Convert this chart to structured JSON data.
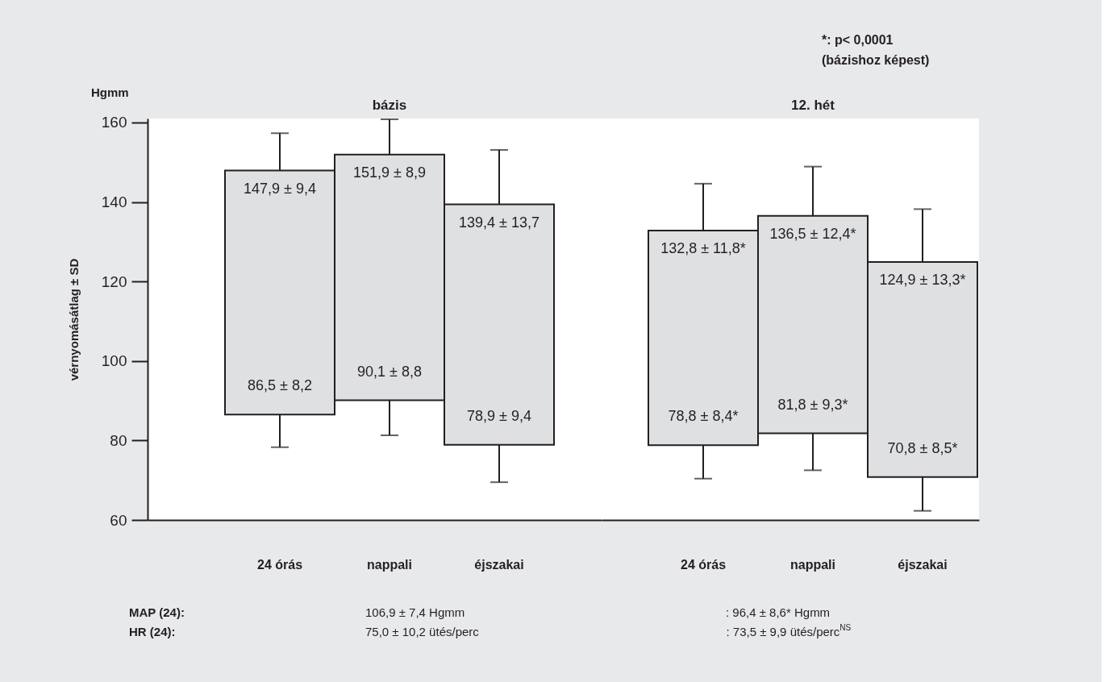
{
  "chart_data": [
    {
      "type": "bar",
      "title": "bázis",
      "ylabel": "vérnyomásátlag ± SD",
      "categories": [
        "24 órás",
        "nappali",
        "éjszakai"
      ],
      "base": [
        86.5,
        90.1,
        78.9
      ],
      "values": [
        61.4,
        61.8,
        60.5
      ],
      "errors": [
        [
          78.3,
          157.3
        ],
        [
          81.3,
          160.8
        ],
        [
          69.5,
          153.1
        ]
      ],
      "color": "#dfe0e2",
      "ylim": [
        60,
        161
      ],
      "yticks": [
        60,
        80,
        100,
        120,
        140,
        160
      ],
      "grid": false,
      "annotations": [
        {
          "text": "147,9 ± 9,4",
          "x": "24 órás",
          "y": 147.9
        },
        {
          "text": "86,5 ± 8,2",
          "x": "24 órás",
          "y": 86.5
        },
        {
          "text": "151,9 ± 8,9",
          "x": "nappali",
          "y": 151.9
        },
        {
          "text": "90,1 ± 8,8",
          "x": "nappali",
          "y": 90.1
        },
        {
          "text": "139,4 ± 13,7",
          "x": "éjszakai",
          "y": 139.4
        },
        {
          "text": "78,9 ± 9,4",
          "x": "éjszakai",
          "y": 78.9
        },
        "Hgmm",
        "MAP (24):",
        "HR (24):",
        "106,9 ± 7,4 Hgmm",
        "75,0 ± 10,2 ütés/perc"
      ]
    },
    {
      "type": "bar",
      "title": "12. hét",
      "categories": [
        "24 órás",
        "nappali",
        "éjszakai"
      ],
      "base": [
        78.8,
        81.8,
        70.8
      ],
      "values": [
        54.0,
        54.7,
        54.1
      ],
      "errors": [
        [
          70.4,
          144.6
        ],
        [
          72.5,
          148.9
        ],
        [
          62.3,
          138.2
        ]
      ],
      "color": "#dfe0e2",
      "ylim": [
        60,
        161
      ],
      "yticks": [
        60,
        80,
        100,
        120,
        140,
        160
      ],
      "grid": false,
      "tick_labels": "x",
      "annotations": [
        {
          "text": "132,8 ± 11,8*",
          "x": "24 órás",
          "y": 132.8
        },
        {
          "text": "78,8 ± 8,4*",
          "x": "24 órás",
          "y": 78.8
        },
        {
          "text": "136,5 ± 12,4*",
          "x": "nappali",
          "y": 136.5
        },
        {
          "text": "81,8 ± 9,3*",
          "x": "nappali",
          "y": 81.8
        },
        {
          "text": "124,9 ± 13,3*",
          "x": "éjszakai",
          "y": 124.9
        },
        {
          "text": "70,8 ± 8,5*",
          "x": "éjszakai",
          "y": 70.8
        },
        ": 96,4 ± 8,6* Hgmm",
        ": 73,5 ± 9,9 ütés/perc$^{NS}$",
        "*: p< 0,0001\n(bázishoz képest)"
      ]
    }
  ]
}
